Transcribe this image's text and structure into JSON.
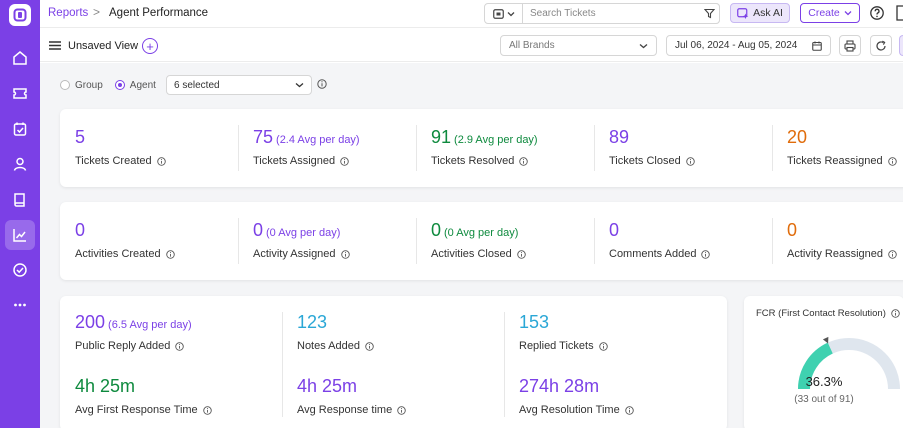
{
  "topbar": {
    "breadcrumb_link": "Reports",
    "breadcrumb_sep": ">",
    "breadcrumb_current": "Agent Performance",
    "search_placeholder": "Search Tickets",
    "ask_ai_label": "Ask AI",
    "create_label": "Create"
  },
  "subbar": {
    "view_title": "Unsaved View",
    "brands_label": "All Brands",
    "date_range": "Jul 06, 2024 - Aug 05, 2024"
  },
  "filters": {
    "group_label": "Group",
    "agent_label": "Agent",
    "agent_selected": "Agent",
    "agent_select_value": "6 selected"
  },
  "row1": [
    {
      "value": "5",
      "avg": "",
      "label": "Tickets Created",
      "color": "purple"
    },
    {
      "value": "75",
      "avg": "(2.4 Avg per day)",
      "label": "Tickets Assigned",
      "color": "purple"
    },
    {
      "value": "91",
      "avg": "(2.9 Avg per day)",
      "label": "Tickets Resolved",
      "color": "green"
    },
    {
      "value": "89",
      "avg": "",
      "label": "Tickets Closed",
      "color": "purple"
    },
    {
      "value": "20",
      "avg": "",
      "label": "Tickets Reassigned",
      "color": "orange"
    }
  ],
  "row2": [
    {
      "value": "0",
      "avg": "",
      "label": "Activities Created",
      "color": "purple"
    },
    {
      "value": "0",
      "avg": "(0 Avg per day)",
      "label": "Activity Assigned",
      "color": "purple"
    },
    {
      "value": "0",
      "avg": "(0 Avg per day)",
      "label": "Activities Closed",
      "color": "green"
    },
    {
      "value": "0",
      "avg": "",
      "label": "Comments Added",
      "color": "purple"
    },
    {
      "value": "0",
      "avg": "",
      "label": "Activity Reassigned",
      "color": "orange"
    }
  ],
  "row3": [
    {
      "value": "200",
      "avg": "(6.5 Avg per day)",
      "label": "Public Reply Added",
      "color": "purple"
    },
    {
      "value": "123",
      "avg": "",
      "label": "Notes Added",
      "color": "blue"
    },
    {
      "value": "153",
      "avg": "",
      "label": "Replied Tickets",
      "color": "blue"
    }
  ],
  "row4": [
    {
      "value": "4h 25m",
      "label": "Avg First Response Time",
      "color": "green"
    },
    {
      "value": "4h 25m",
      "label": "Avg Response time",
      "color": "purple"
    },
    {
      "value": "274h 28m",
      "label": "Avg Resolution Time",
      "color": "purple"
    }
  ],
  "fcr": {
    "title": "FCR (First Contact Resolution)",
    "percent": "36.3%",
    "fraction": 0.363,
    "subtitle": "(33 out of 91)"
  },
  "colors": {
    "accent": "#7b40e6",
    "green": "#0e8a3e",
    "blue": "#2aa7d6",
    "orange": "#e06c0b",
    "gauge_fill": "#3fd1b0",
    "gauge_track": "#dfe6ee"
  }
}
